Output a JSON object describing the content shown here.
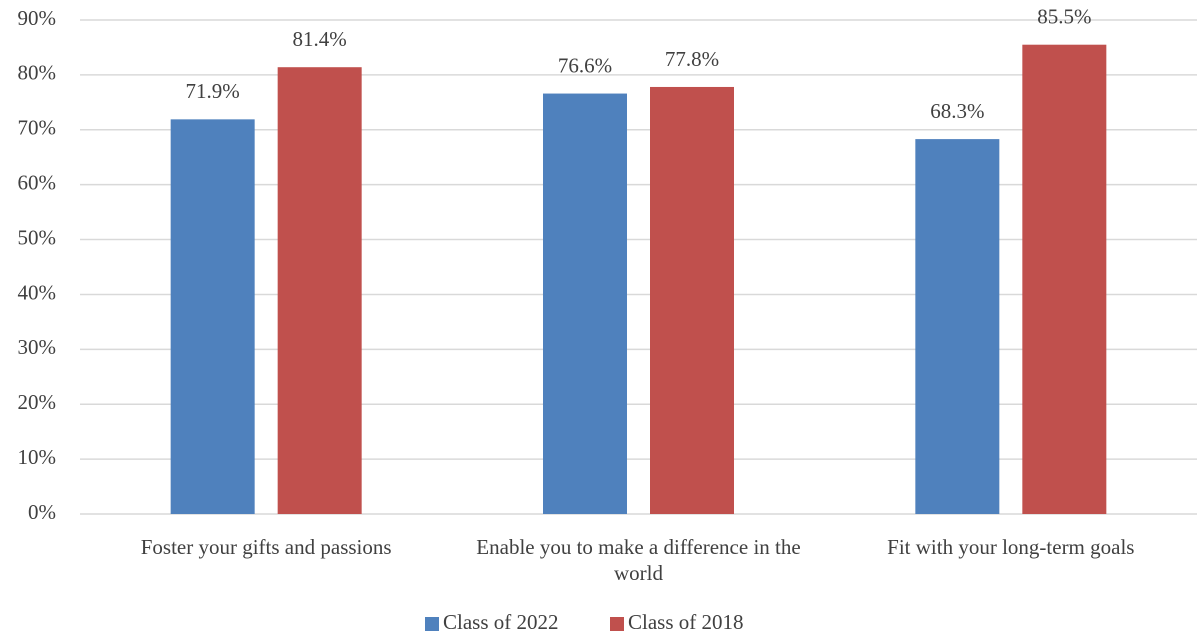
{
  "chart_data": {
    "type": "bar",
    "categories": [
      "Foster your gifts and passions",
      "Enable you to make a difference in the world",
      "Fit with your long-term goals"
    ],
    "series": [
      {
        "name": "Class of 2022",
        "color": "#4f81bd",
        "values": [
          71.9,
          76.6,
          68.3
        ],
        "value_labels": [
          "71.9%",
          "76.6%",
          "68.3%"
        ]
      },
      {
        "name": "Class of 2018",
        "color": "#c0504d",
        "values": [
          81.4,
          77.8,
          85.5
        ],
        "value_labels": [
          "81.4%",
          "77.8%",
          "85.5%"
        ]
      }
    ],
    "ylim": [
      0,
      90
    ],
    "yticks": [
      {
        "value": 0,
        "label": "0%"
      },
      {
        "value": 10,
        "label": "10%"
      },
      {
        "value": 20,
        "label": "20%"
      },
      {
        "value": 30,
        "label": "30%"
      },
      {
        "value": 40,
        "label": "40%"
      },
      {
        "value": 50,
        "label": "50%"
      },
      {
        "value": 60,
        "label": "60%"
      },
      {
        "value": 70,
        "label": "70%"
      },
      {
        "value": 80,
        "label": "80%"
      },
      {
        "value": 90,
        "label": "90%"
      }
    ],
    "grid": true,
    "legend": "bottom"
  }
}
